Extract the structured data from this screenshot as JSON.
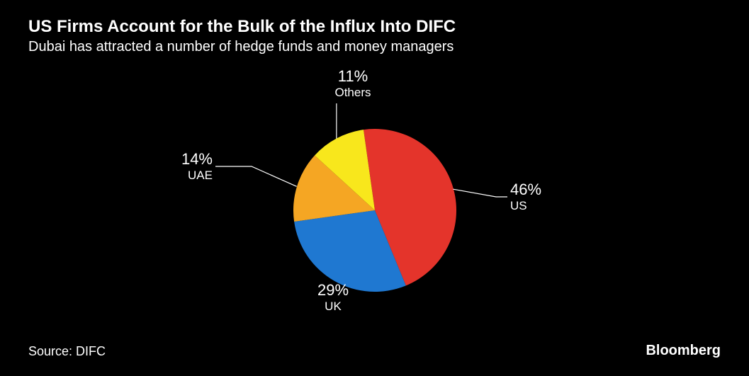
{
  "header": {
    "title": "US Firms Account for the Bulk of the Influx Into DIFC",
    "subtitle": "Dubai has attracted a number of hedge funds and money managers"
  },
  "chart": {
    "type": "pie",
    "background_color": "#000000",
    "radius": 115,
    "text_color": "#ffffff",
    "pct_fontsize": 22,
    "name_fontsize": 17,
    "slices": [
      {
        "label": "US",
        "value": 46,
        "percent_text": "46%",
        "color": "#e4342b"
      },
      {
        "label": "UK",
        "value": 29,
        "percent_text": "29%",
        "color": "#1f78d1"
      },
      {
        "label": "UAE",
        "value": 14,
        "percent_text": "14%",
        "color": "#f5a623"
      },
      {
        "label": "Others",
        "value": 11,
        "percent_text": "11%",
        "color": "#f8e71c"
      }
    ],
    "start_angle_deg": -8,
    "leader_color": "#ffffff"
  },
  "footer": {
    "source": "Source: DIFC",
    "brand": "Bloomberg"
  }
}
